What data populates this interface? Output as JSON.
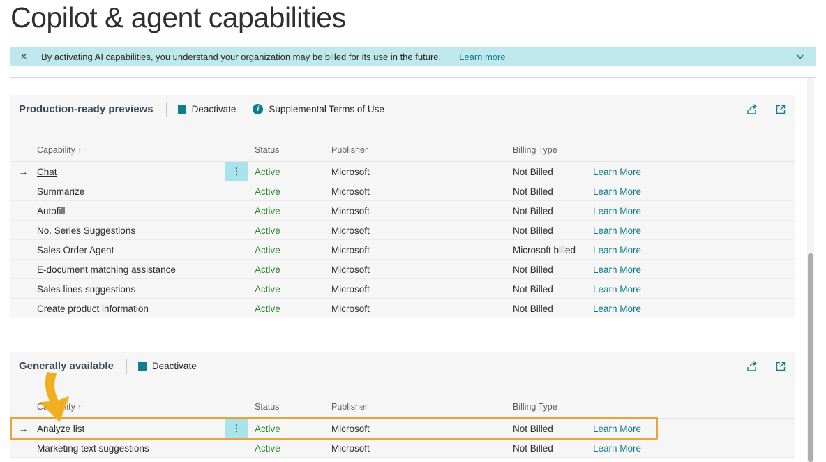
{
  "page": {
    "title": "Copilot & agent capabilities"
  },
  "banner": {
    "message": "By activating AI capabilities, you understand your organization may be billed for its use in the future.",
    "learn_more_label": "Learn more"
  },
  "icons": {
    "close": "✕",
    "sort_up": "↑",
    "row_pointer": "→",
    "ellipsis": "⋮",
    "info": "i"
  },
  "colors": {
    "accent_teal": "#0f7e8a",
    "banner_bg": "#bee8ec",
    "active_green": "#2c862d",
    "selection_cyan": "#a9e4ec",
    "annotation_gold": "#f0af21",
    "annotation_border": "#e8a43c"
  },
  "table_columns": {
    "capability": "Capability",
    "status": "Status",
    "publisher": "Publisher",
    "billing_type": "Billing Type"
  },
  "sections": [
    {
      "title": "Production-ready previews",
      "actions": [
        {
          "label": "Deactivate",
          "icon": "square"
        },
        {
          "label": "Supplemental Terms of Use",
          "icon": "info"
        }
      ],
      "rows": [
        {
          "capability": "Chat",
          "status": "Active",
          "publisher": "Microsoft",
          "billing_type": "Not Billed",
          "learn_more": "Learn More",
          "selected": true
        },
        {
          "capability": "Summarize",
          "status": "Active",
          "publisher": "Microsoft",
          "billing_type": "Not Billed",
          "learn_more": "Learn More"
        },
        {
          "capability": "Autofill",
          "status": "Active",
          "publisher": "Microsoft",
          "billing_type": "Not Billed",
          "learn_more": "Learn More"
        },
        {
          "capability": "No. Series Suggestions",
          "status": "Active",
          "publisher": "Microsoft",
          "billing_type": "Not Billed",
          "learn_more": "Learn More"
        },
        {
          "capability": "Sales Order Agent",
          "status": "Active",
          "publisher": "Microsoft",
          "billing_type": "Microsoft billed",
          "learn_more": "Learn More"
        },
        {
          "capability": "E-document matching assistance",
          "status": "Active",
          "publisher": "Microsoft",
          "billing_type": "Not Billed",
          "learn_more": "Learn More"
        },
        {
          "capability": "Sales lines suggestions",
          "status": "Active",
          "publisher": "Microsoft",
          "billing_type": "Not Billed",
          "learn_more": "Learn More"
        },
        {
          "capability": "Create product information",
          "status": "Active",
          "publisher": "Microsoft",
          "billing_type": "Not Billed",
          "learn_more": "Learn More"
        }
      ]
    },
    {
      "title": "Generally available",
      "actions": [
        {
          "label": "Deactivate",
          "icon": "square"
        }
      ],
      "rows": [
        {
          "capability": "Analyze list",
          "status": "Active",
          "publisher": "Microsoft",
          "billing_type": "Not Billed",
          "learn_more": "Learn More",
          "selected": true,
          "highlighted": true
        },
        {
          "capability": "Marketing text suggestions",
          "status": "Active",
          "publisher": "Microsoft",
          "billing_type": "Not Billed",
          "learn_more": "Learn More"
        }
      ]
    }
  ]
}
